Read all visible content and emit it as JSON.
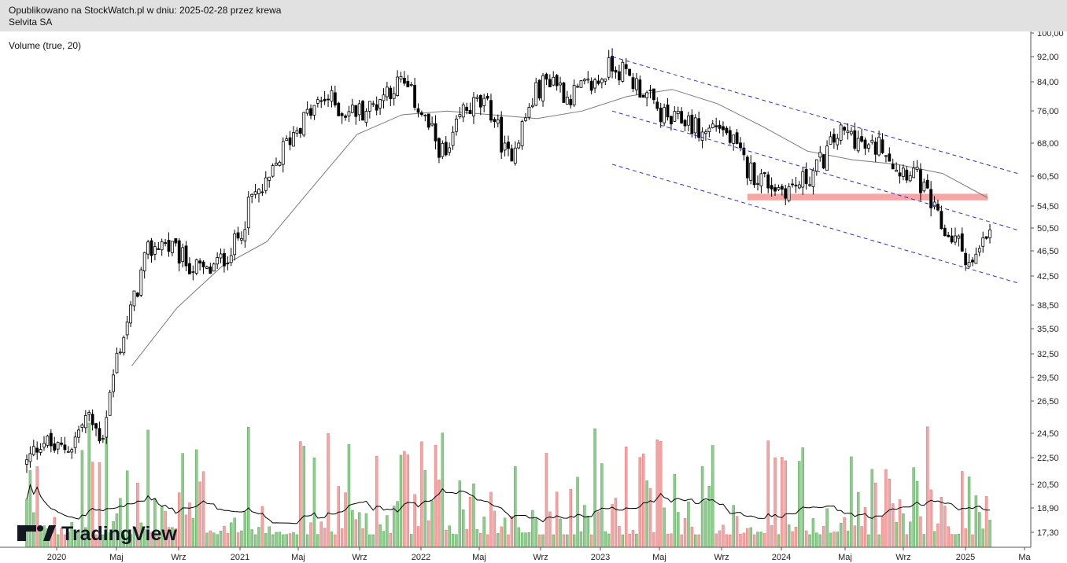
{
  "header": {
    "line1": "Opublikowano na StockWatch.pl w dniu: 2025-02-28 przez krewa",
    "line2": "Selvita SA"
  },
  "indicator_label": "Volume (true, 20)",
  "watermark": "TradingView",
  "colors": {
    "up": "#000000",
    "down": "#000000",
    "up_body": "#ffffff",
    "down_body": "#000000",
    "ma": "#7a7a7a",
    "channel": "#2d2ddf",
    "support": "#f7a6a6",
    "vol_up": "#90cc90",
    "vol_down": "#f5a3a3",
    "vol_ma": "#000000",
    "axis_text": "#222222"
  },
  "chart_data": {
    "type": "candlestick",
    "y_scale": "log",
    "y_ticks": [
      "100,00",
      "92,00",
      "84,00",
      "76,00",
      "68,00",
      "60,50",
      "54,50",
      "50,50",
      "46,50",
      "42,50",
      "38,50",
      "35,50",
      "32,50",
      "29,50",
      "26,50",
      "24,50",
      "22,50",
      "20,50",
      "18,90",
      "17,30"
    ],
    "x_ticks": [
      "2020",
      "Maj",
      "Wrz",
      "2021",
      "Maj",
      "Wrz",
      "2022",
      "Maj",
      "Wrz",
      "2023",
      "Maj",
      "Wrz",
      "2024",
      "Maj",
      "Wrz",
      "2025",
      "Ma"
    ],
    "price_path": [
      [
        "2019-10",
        22.0
      ],
      [
        "2019-11",
        24.0
      ],
      [
        "2019-12",
        23.0
      ],
      [
        "2020-01",
        23.5
      ],
      [
        "2020-02",
        26.0
      ],
      [
        "2020-03",
        24.0
      ],
      [
        "2020-04",
        32.0
      ],
      [
        "2020-05",
        38.0
      ],
      [
        "2020-06",
        46.0
      ],
      [
        "2020-07",
        48.0
      ],
      [
        "2020-08",
        46.0
      ],
      [
        "2020-09",
        44.0
      ],
      [
        "2020-10",
        43.0
      ],
      [
        "2020-11",
        45.0
      ],
      [
        "2020-12",
        48.0
      ],
      [
        "2021-01",
        56.0
      ],
      [
        "2021-02",
        58.0
      ],
      [
        "2021-03",
        66.0
      ],
      [
        "2021-04",
        72.0
      ],
      [
        "2021-05",
        76.0
      ],
      [
        "2021-06",
        80.0
      ],
      [
        "2021-07",
        76.0
      ],
      [
        "2021-08",
        76.0
      ],
      [
        "2021-09",
        77.0
      ],
      [
        "2021-10",
        82.0
      ],
      [
        "2021-11",
        84.0
      ],
      [
        "2021-12",
        78.0
      ],
      [
        "2022-01",
        70.0
      ],
      [
        "2022-02",
        64.0
      ],
      [
        "2022-03",
        76.0
      ],
      [
        "2022-04",
        78.0
      ],
      [
        "2022-05",
        76.0
      ],
      [
        "2022-06",
        64.0
      ],
      [
        "2022-07",
        72.0
      ],
      [
        "2022-08",
        82.0
      ],
      [
        "2022-09",
        86.0
      ],
      [
        "2022-10",
        80.0
      ],
      [
        "2022-11",
        82.0
      ],
      [
        "2022-12",
        84.0
      ],
      [
        "2023-01",
        90.0
      ],
      [
        "2023-02",
        86.0
      ],
      [
        "2023-03",
        82.0
      ],
      [
        "2023-04",
        76.0
      ],
      [
        "2023-05",
        73.0
      ],
      [
        "2023-06",
        74.0
      ],
      [
        "2023-07",
        70.0
      ],
      [
        "2023-08",
        73.0
      ],
      [
        "2023-09",
        68.0
      ],
      [
        "2023-10",
        62.0
      ],
      [
        "2023-11",
        60.0
      ],
      [
        "2023-12",
        58.0
      ],
      [
        "2024-01",
        58.0
      ],
      [
        "2024-02",
        60.0
      ],
      [
        "2024-03",
        64.0
      ],
      [
        "2024-04",
        70.0
      ],
      [
        "2024-05",
        70.0
      ],
      [
        "2024-06",
        66.0
      ],
      [
        "2024-07",
        68.0
      ],
      [
        "2024-08",
        62.0
      ],
      [
        "2024-09",
        62.0
      ],
      [
        "2024-10",
        56.0
      ],
      [
        "2024-11",
        50.0
      ],
      [
        "2024-12",
        48.0
      ],
      [
        "2025-01",
        44.0
      ],
      [
        "2025-02",
        49.0
      ]
    ],
    "moving_average": [
      [
        "2020-05",
        31.0
      ],
      [
        "2020-08",
        38.0
      ],
      [
        "2020-11",
        44.0
      ],
      [
        "2021-02",
        48.0
      ],
      [
        "2021-05",
        58.0
      ],
      [
        "2021-08",
        70.0
      ],
      [
        "2021-11",
        75.0
      ],
      [
        "2022-02",
        76.0
      ],
      [
        "2022-05",
        75.0
      ],
      [
        "2022-08",
        74.0
      ],
      [
        "2022-11",
        76.0
      ],
      [
        "2023-02",
        80.0
      ],
      [
        "2023-05",
        82.0
      ],
      [
        "2023-08",
        78.0
      ],
      [
        "2023-11",
        72.0
      ],
      [
        "2024-02",
        66.0
      ],
      [
        "2024-05",
        64.0
      ],
      [
        "2024-08",
        63.0
      ],
      [
        "2024-11",
        61.0
      ],
      [
        "2025-02",
        56.0
      ]
    ],
    "trend_channel": {
      "upper": [
        [
          "2023-01",
          92.0
        ],
        [
          "2025-04",
          61.0
        ]
      ],
      "middle": [
        [
          "2023-01",
          76.0
        ],
        [
          "2025-04",
          50.0
        ]
      ],
      "lower": [
        [
          "2023-01",
          63.0
        ],
        [
          "2025-04",
          41.5
        ]
      ]
    },
    "support_zone": {
      "from": "2023-10",
      "to": "2025-02",
      "low": 55.5,
      "high": 56.8
    }
  }
}
